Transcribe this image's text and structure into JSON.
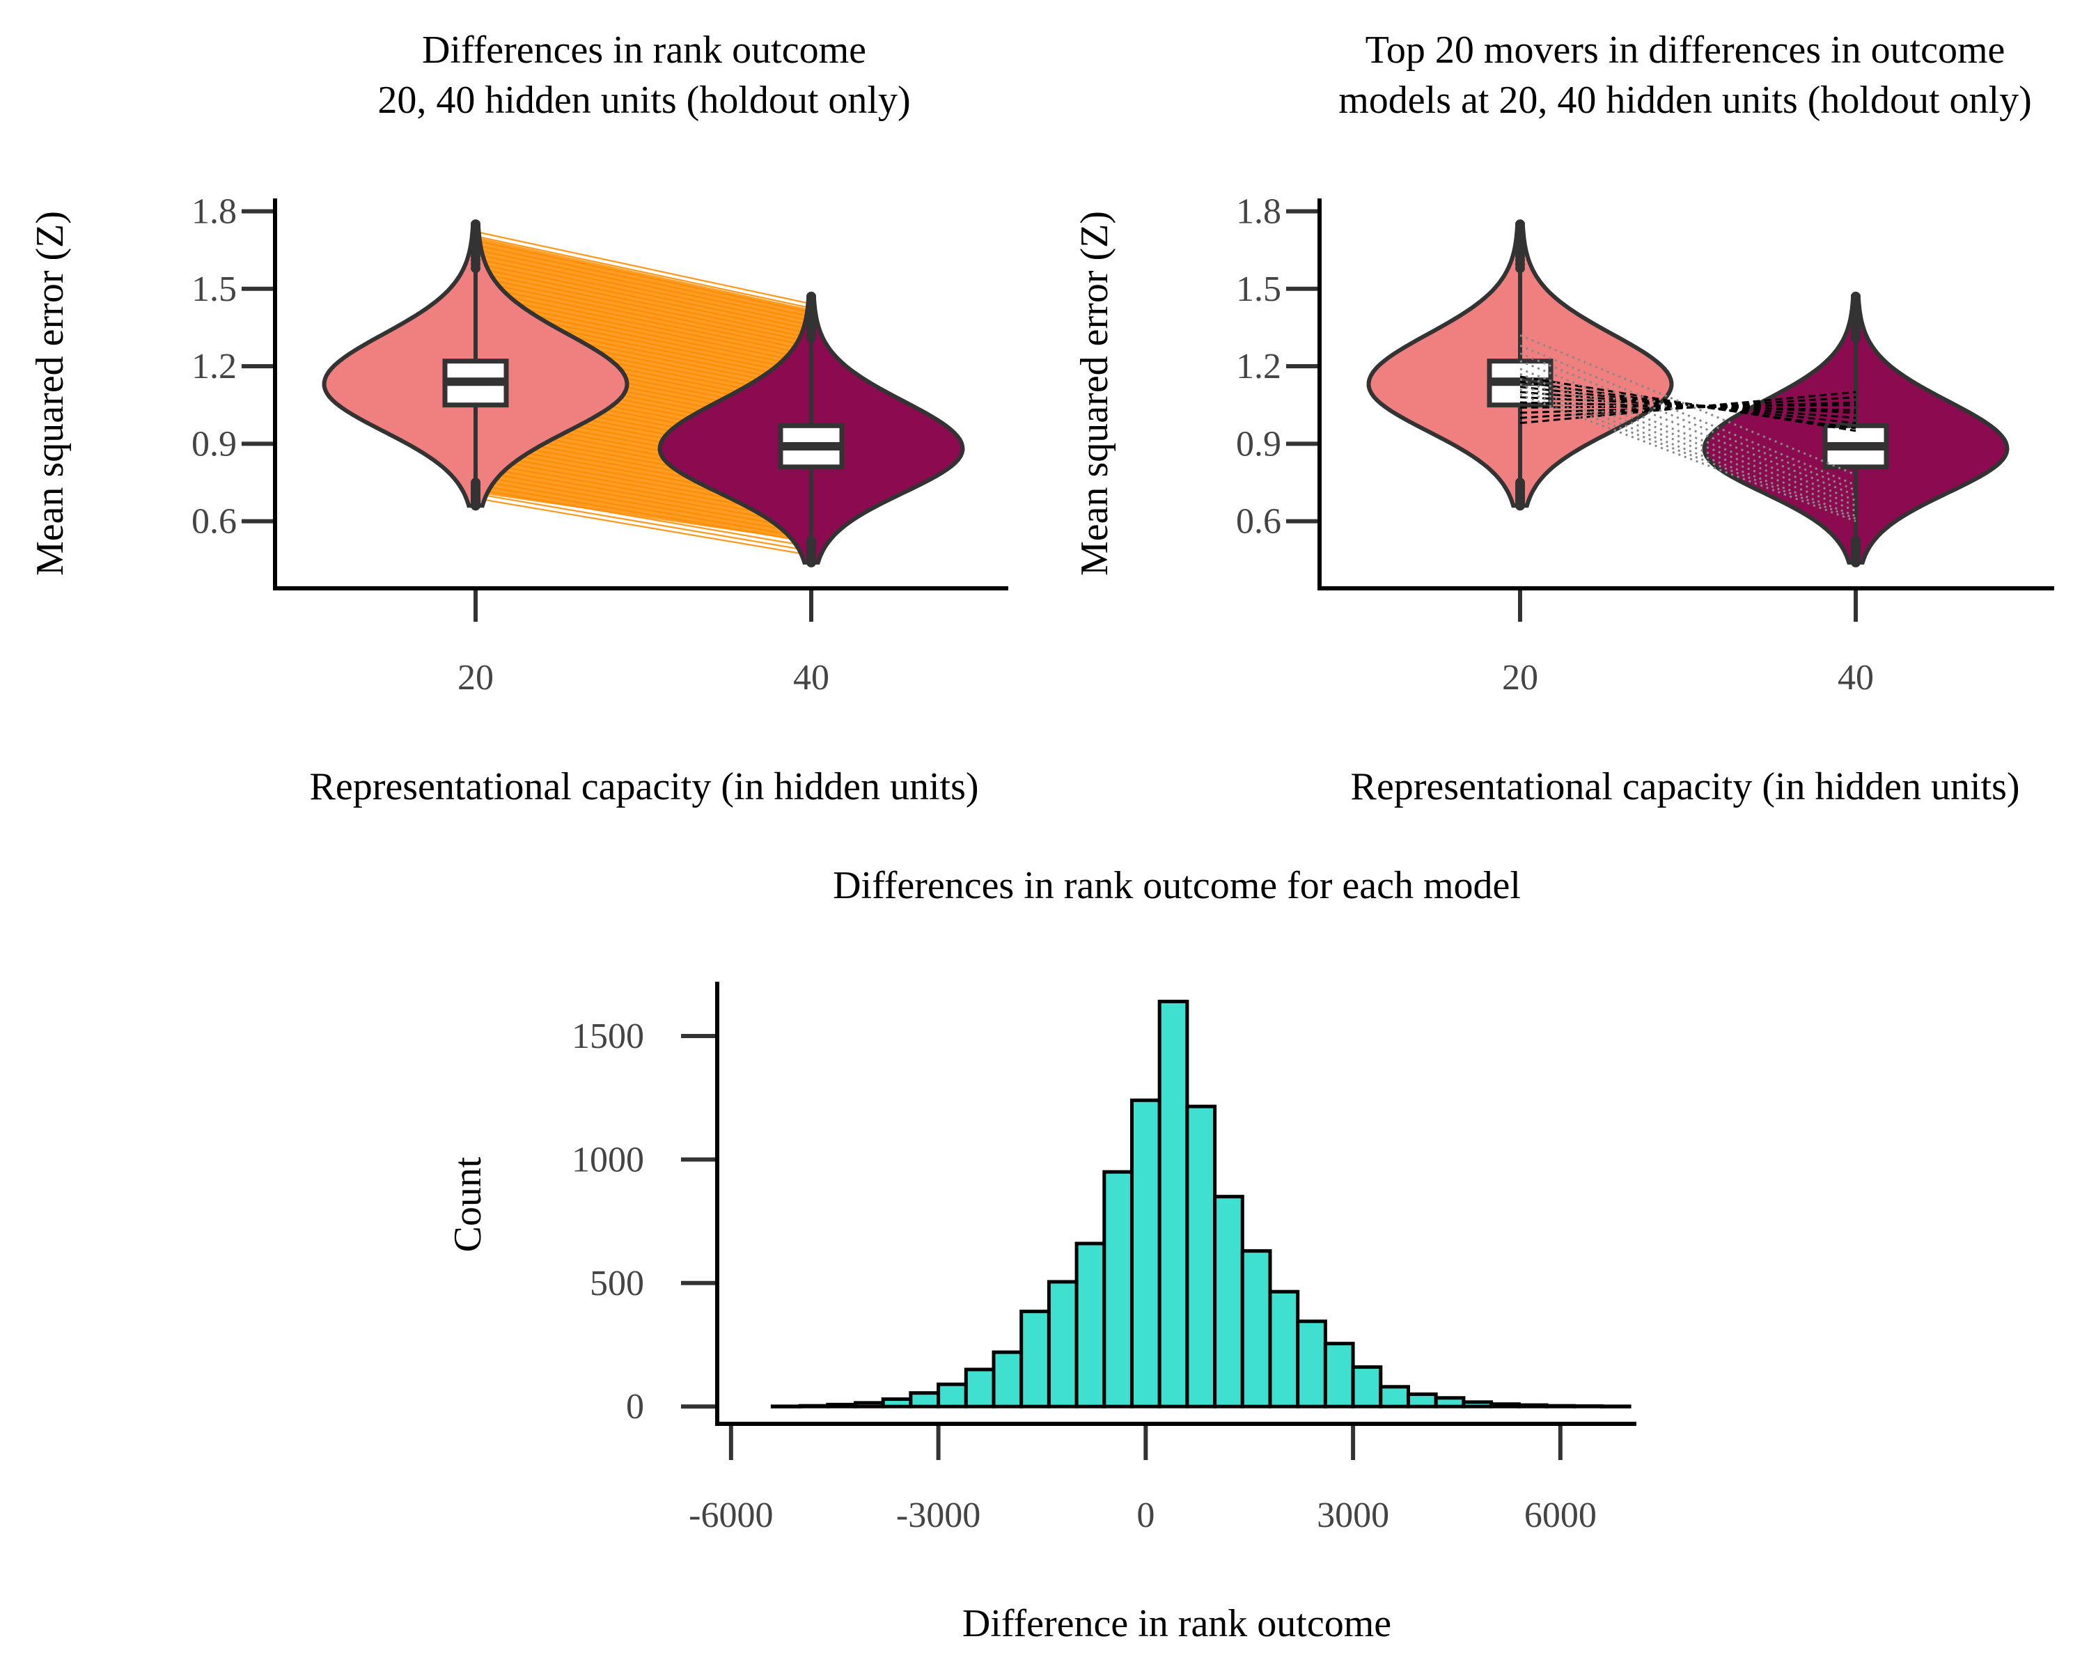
{
  "chart_data": [
    {
      "type": "violin",
      "title_line1": "Differences in rank outcome",
      "title_line2": "20, 40 hidden units (holdout only)",
      "xlabel": "Representational capacity (in hidden units)",
      "ylabel": "Mean squared error (Z)",
      "categories": [
        "20",
        "40"
      ],
      "yticks": [
        "0.6",
        "0.9",
        "1.2",
        "1.5",
        "1.8"
      ],
      "ytick_values": [
        0.6,
        0.9,
        1.2,
        1.5,
        1.8
      ],
      "ylim": [
        0.34,
        1.85
      ],
      "groups": [
        {
          "category": "20",
          "color": "#F08080",
          "min": 0.66,
          "max": 1.75,
          "q1": 1.05,
          "median": 1.14,
          "q3": 1.22,
          "mode": 1.13
        },
        {
          "category": "40",
          "color": "#8B0A50",
          "min": 0.44,
          "max": 1.47,
          "q1": 0.81,
          "median": 0.89,
          "q3": 0.97,
          "mode": 0.88
        }
      ],
      "paired_lines": {
        "color": "#FF8C00",
        "count": 60
      }
    },
    {
      "type": "violin",
      "title_line1": "Top 20 movers in differences in outcome",
      "title_line2": "models at 20, 40 hidden units (holdout only)",
      "xlabel": "Representational capacity (in hidden units)",
      "ylabel": "Mean squared error (Z)",
      "categories": [
        "20",
        "40"
      ],
      "yticks": [
        "0.6",
        "0.9",
        "1.2",
        "1.5",
        "1.8"
      ],
      "ytick_values": [
        0.6,
        0.9,
        1.2,
        1.5,
        1.8
      ],
      "ylim": [
        0.34,
        1.85
      ],
      "groups": [
        {
          "category": "20",
          "color": "#F08080",
          "min": 0.66,
          "max": 1.75,
          "q1": 1.05,
          "median": 1.14,
          "q3": 1.22,
          "mode": 1.13
        },
        {
          "category": "40",
          "color": "#8B0A50",
          "min": 0.44,
          "max": 1.47,
          "q1": 0.81,
          "median": 0.89,
          "q3": 0.97,
          "mode": 0.88
        }
      ],
      "movers_up": [
        [
          0.98,
          1.1
        ],
        [
          1.0,
          1.08
        ],
        [
          1.02,
          1.06
        ],
        [
          1.04,
          1.05
        ],
        [
          1.06,
          1.03
        ],
        [
          1.08,
          1.02
        ],
        [
          1.1,
          1.0
        ],
        [
          1.12,
          0.98
        ],
        [
          1.14,
          0.96
        ],
        [
          1.16,
          0.95
        ]
      ],
      "movers_down": [
        [
          1.32,
          0.78
        ],
        [
          1.28,
          0.74
        ],
        [
          1.25,
          0.72
        ],
        [
          1.22,
          0.7
        ],
        [
          1.19,
          0.68
        ],
        [
          1.17,
          0.66
        ],
        [
          1.15,
          0.64
        ],
        [
          1.13,
          0.62
        ],
        [
          1.11,
          0.61
        ],
        [
          1.09,
          0.6
        ]
      ]
    },
    {
      "type": "histogram",
      "title": "Differences in rank outcome for each model",
      "xlabel": "Difference in rank outcome",
      "ylabel": "Count",
      "xticks": [
        "-6000",
        "-3000",
        "0",
        "3000",
        "6000"
      ],
      "xtick_values": [
        -6000,
        -3000,
        0,
        3000,
        6000
      ],
      "yticks": [
        "0",
        "500",
        "1000",
        "1500"
      ],
      "ytick_values": [
        0,
        500,
        1000,
        1500
      ],
      "xlim": [
        -6200,
        7100
      ],
      "ylim": [
        -70,
        1720
      ],
      "bin_width": 400,
      "bin_start": -5400,
      "counts": [
        1,
        3,
        8,
        15,
        30,
        55,
        90,
        150,
        220,
        385,
        505,
        660,
        950,
        1240,
        1640,
        1215,
        850,
        630,
        465,
        345,
        255,
        160,
        80,
        50,
        35,
        18,
        10,
        6,
        3,
        2,
        1
      ]
    }
  ]
}
